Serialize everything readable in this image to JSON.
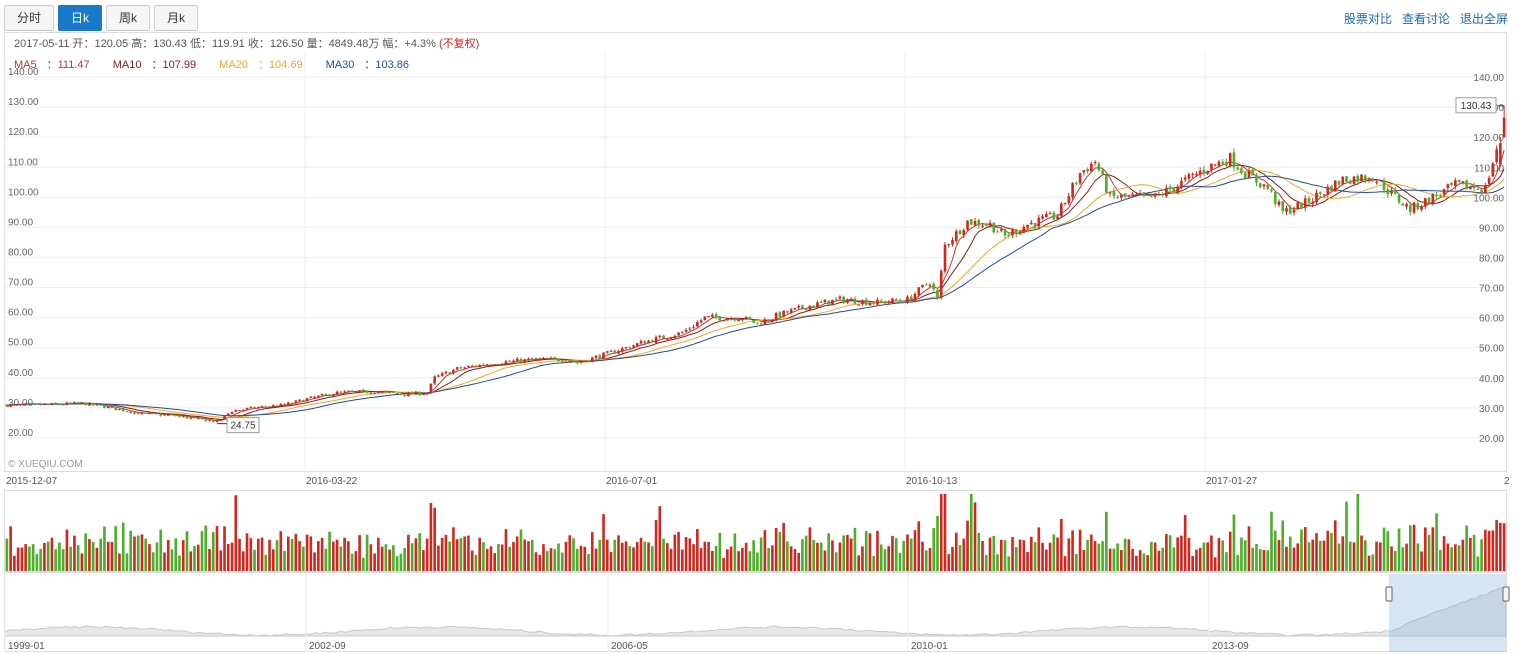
{
  "tabs": [
    {
      "label": "分时",
      "active": false
    },
    {
      "label": "日k",
      "active": true
    },
    {
      "label": "周k",
      "active": false
    },
    {
      "label": "月k",
      "active": false
    }
  ],
  "links": [
    "股票对比",
    "查看讨论",
    "退出全屏"
  ],
  "info": {
    "date": "2017-05-11",
    "open_label": "开",
    "open": "120.05",
    "high_label": "高",
    "high": "130.43",
    "low_label": "低",
    "low": "119.91",
    "close_label": "收",
    "close": "126.50",
    "vol_label": "量",
    "volume": "4849.48万",
    "chg_label": "幅",
    "change": "+4.3%",
    "adjust": "(不复权)"
  },
  "ma_legend": [
    {
      "label": "MA5",
      "value": "111.47",
      "color": "#c23531"
    },
    {
      "label": "MA10",
      "value": "107.99",
      "color": "#8b1a1a"
    },
    {
      "label": "MA20",
      "value": "104.69",
      "color": "#f5a623"
    },
    {
      "label": "MA30",
      "value": "103.86",
      "color": "#1f4e9c"
    }
  ],
  "watermark": "© XUEQIU.COM",
  "colors": {
    "up": "#d2271e",
    "down": "#4caf29",
    "accent": "#1a79c9"
  },
  "chart_data": {
    "type": "candlestick",
    "y_ticks": [
      "140.00",
      "130.00",
      "120.00",
      "110.00",
      "100.00",
      "90.00",
      "80.00",
      "70.00",
      "60.00",
      "50.00",
      "40.00",
      "30.00",
      "20.00"
    ],
    "ylim": [
      10,
      145
    ],
    "x_ticks": [
      "2015-12-07",
      "2016-03-22",
      "2016-07-01",
      "2016-10-13",
      "2017-01-27"
    ],
    "x_ticks_last": "2",
    "max_label": "130.43",
    "min_label": "24.75",
    "anchors": [
      [
        0,
        31
      ],
      [
        10,
        31
      ],
      [
        20,
        31.5
      ],
      [
        28,
        30
      ],
      [
        36,
        28
      ],
      [
        44,
        27.5
      ],
      [
        52,
        26
      ],
      [
        56,
        25.5
      ],
      [
        60,
        29
      ],
      [
        66,
        30
      ],
      [
        74,
        31
      ],
      [
        80,
        33
      ],
      [
        88,
        35
      ],
      [
        98,
        35.5
      ],
      [
        106,
        34.5
      ],
      [
        112,
        35
      ],
      [
        114,
        40
      ],
      [
        120,
        43
      ],
      [
        130,
        45
      ],
      [
        140,
        46
      ],
      [
        150,
        46
      ],
      [
        152,
        45
      ],
      [
        160,
        48
      ],
      [
        170,
        52
      ],
      [
        180,
        55
      ],
      [
        186,
        60
      ],
      [
        196,
        60
      ],
      [
        200,
        58
      ],
      [
        206,
        61
      ],
      [
        214,
        64
      ],
      [
        222,
        66
      ],
      [
        232,
        65
      ],
      [
        240,
        66
      ],
      [
        246,
        72
      ],
      [
        248,
        66
      ],
      [
        250,
        84
      ],
      [
        256,
        92
      ],
      [
        262,
        91
      ],
      [
        266,
        87
      ],
      [
        272,
        91
      ],
      [
        280,
        94
      ],
      [
        286,
        108
      ],
      [
        290,
        112
      ],
      [
        294,
        100
      ],
      [
        300,
        100
      ],
      [
        306,
        100
      ],
      [
        312,
        104
      ],
      [
        320,
        110
      ],
      [
        326,
        113
      ],
      [
        330,
        108
      ],
      [
        336,
        103
      ],
      [
        340,
        95
      ],
      [
        346,
        98
      ],
      [
        356,
        106
      ],
      [
        364,
        107
      ],
      [
        370,
        100
      ],
      [
        374,
        96
      ],
      [
        380,
        100
      ],
      [
        386,
        104
      ],
      [
        394,
        103
      ],
      [
        400,
        129
      ]
    ],
    "volume_note": "volume bars shown beneath price chart",
    "navigator_ticks": [
      "1999-01",
      "2002-09",
      "2006-05",
      "2010-01",
      "2013-09"
    ]
  }
}
